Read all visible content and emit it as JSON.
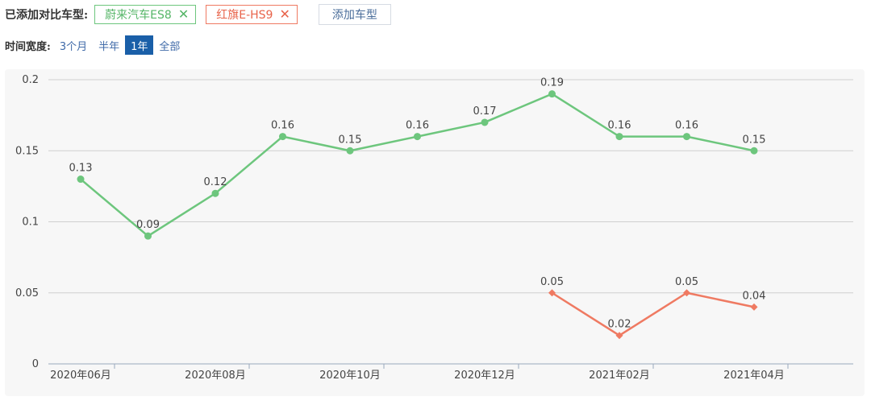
{
  "header": {
    "compare_label": "已添加对比车型:",
    "chips": [
      {
        "label": "蔚来汽车ES8",
        "color": "#55b567"
      },
      {
        "label": "红旗E-HS9",
        "color": "#e8634a"
      }
    ],
    "close_glyph": "✕",
    "add_button": "添加车型"
  },
  "time_filter": {
    "label": "时间宽度:",
    "options": [
      "3个月",
      "半年",
      "1年",
      "全部"
    ],
    "active": "1年"
  },
  "chart_data": {
    "type": "line",
    "x": [
      "2020-06",
      "2020-07",
      "2020-08",
      "2020-09",
      "2020-10",
      "2020-11",
      "2020-12",
      "2021-01",
      "2021-02",
      "2021-03",
      "2021-04"
    ],
    "x_tick_labels": [
      {
        "x": "2020-06",
        "label": "2020年06月"
      },
      {
        "x": "2020-08",
        "label": "2020年08月"
      },
      {
        "x": "2020-10",
        "label": "2020年10月"
      },
      {
        "x": "2020-12",
        "label": "2020年12月"
      },
      {
        "x": "2021-02",
        "label": "2021年02月"
      },
      {
        "x": "2021-04",
        "label": "2021年04月"
      }
    ],
    "ylim": [
      0,
      0.2
    ],
    "y_ticks": [
      {
        "value": 0,
        "label": "0"
      },
      {
        "value": 0.05,
        "label": "0.05"
      },
      {
        "value": 0.1,
        "label": "0.1"
      },
      {
        "value": 0.15,
        "label": "0.15"
      },
      {
        "value": 0.2,
        "label": "0.2"
      }
    ],
    "grid": true,
    "series": [
      {
        "name": "蔚来汽车ES8",
        "color": "#6dc67d",
        "marker": "circle",
        "values": [
          0.13,
          0.09,
          0.12,
          0.16,
          0.15,
          0.16,
          0.17,
          0.19,
          0.16,
          0.16,
          0.15
        ],
        "labels": [
          "0.13",
          "0.09",
          "0.12",
          "0.16",
          "0.15",
          "0.16",
          "0.17",
          "0.19",
          "0.16",
          "0.16",
          "0.15"
        ]
      },
      {
        "name": "红旗E-HS9",
        "color": "#ef7a62",
        "marker": "diamond",
        "values": [
          null,
          null,
          null,
          null,
          null,
          null,
          null,
          0.05,
          0.02,
          0.05,
          0.04
        ],
        "labels": [
          "",
          "",
          "",
          "",
          "",
          "",
          "",
          "0.05",
          "0.02",
          "0.05",
          "0.04"
        ]
      }
    ]
  }
}
